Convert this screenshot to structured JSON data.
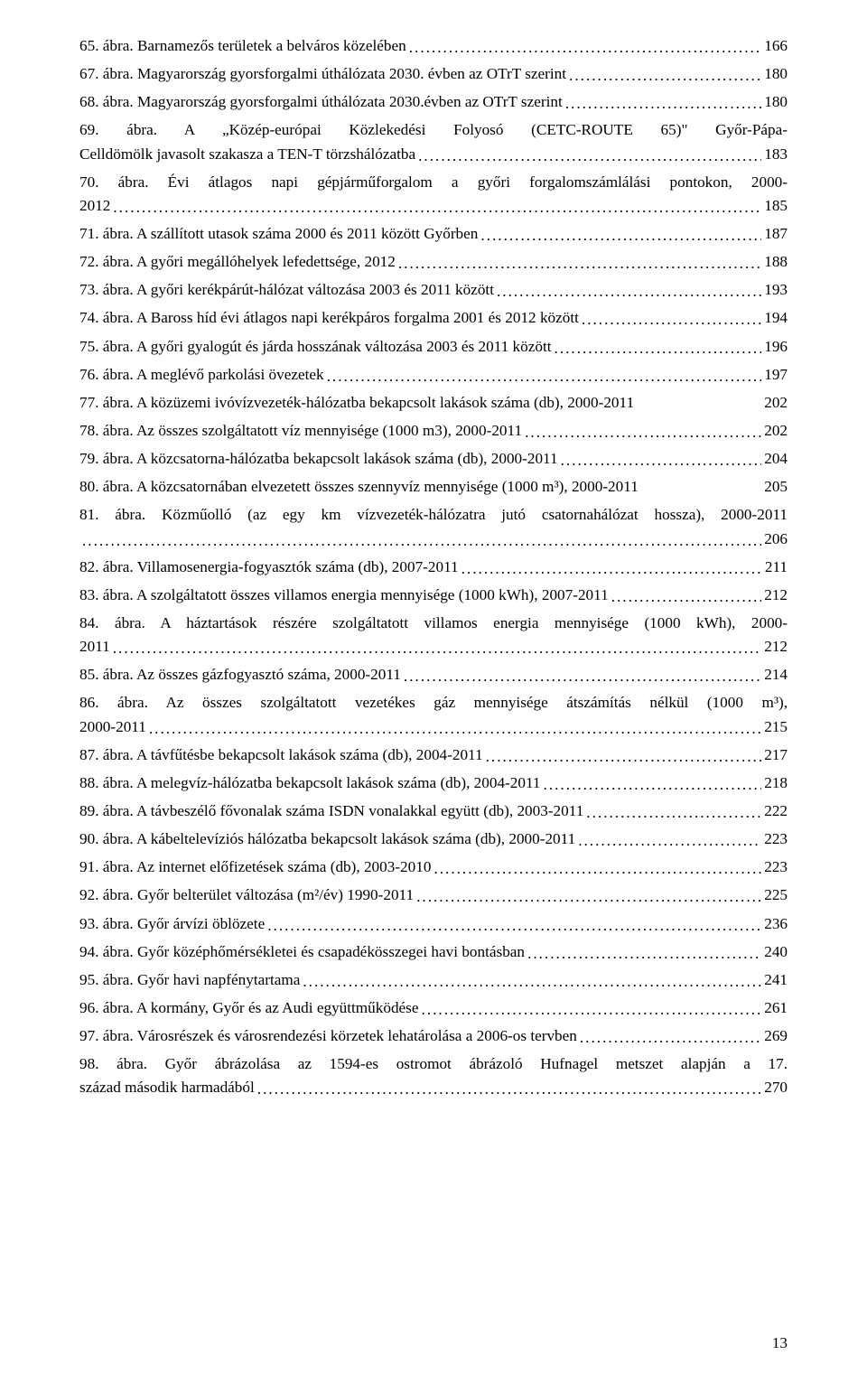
{
  "page_number": "13",
  "entries": [
    {
      "label": "65. ábra. Barnamezős területek a belváros közelében",
      "page": "166",
      "wrap": false
    },
    {
      "label": "67. ábra. Magyarország gyorsforgalmi úthálózata 2030. évben az OTrT szerint",
      "page": "180",
      "wrap": false
    },
    {
      "label": "68. ábra. Magyarország gyorsforgalmi úthálózata 2030.évben az OTrT szerint",
      "page": "180",
      "wrap": false
    },
    {
      "label_line1": "69. ábra. A „Közép-európai Közlekedési Folyosó (CETC-ROUTE 65)\" Győr-Pápa-",
      "label_line2": "Celldömölk javasolt szakasza a TEN-T törzshálózatba",
      "page": "183",
      "wrap": true
    },
    {
      "label_line1": "70. ábra. Évi átlagos napi gépjárműforgalom a győri forgalomszámlálási pontokon, 2000-",
      "label_line2": "2012",
      "page": "185",
      "wrap": true
    },
    {
      "label": "71. ábra. A szállított utasok száma 2000 és 2011 között Győrben",
      "page": "187",
      "wrap": false
    },
    {
      "label": "72. ábra. A győri megállóhelyek lefedettsége, 2012",
      "page": "188",
      "wrap": false
    },
    {
      "label": "73. ábra. A győri kerékpárút-hálózat változása 2003 és 2011 között",
      "page": "193",
      "wrap": false
    },
    {
      "label": "74. ábra. A Baross híd évi átlagos napi kerékpáros forgalma 2001 és 2012 között",
      "page": "194",
      "wrap": false
    },
    {
      "label": "75. ábra. A győri gyalogút és járda hosszának változása 2003 és 2011 között",
      "page": "196",
      "wrap": false
    },
    {
      "label": "76. ábra. A meglévő parkolási övezetek",
      "page": "197",
      "wrap": false
    },
    {
      "label": "77. ábra. A közüzemi ivóvízvezeték-hálózatba bekapcsolt lakások száma (db), 2000-2011",
      "page": "202",
      "wrap": false,
      "nodots": true
    },
    {
      "label": "78. ábra. Az összes szolgáltatott víz mennyisége (1000 m3), 2000-2011",
      "page": "202",
      "wrap": false
    },
    {
      "label": "79. ábra. A közcsatorna-hálózatba bekapcsolt lakások száma (db), 2000-2011",
      "page": "204",
      "wrap": false
    },
    {
      "label": "80. ábra. A közcsatornában elvezetett összes szennyvíz mennyisége (1000 m³), 2000-2011",
      "page": "205",
      "wrap": false,
      "nodots": true
    },
    {
      "label_line1": "81. ábra. Közműolló (az egy km vízvezeték-hálózatra jutó csatornahálózat hossza), 2000-2011",
      "label_line2": "",
      "page": "206",
      "wrap": true,
      "dots_only_line2": true
    },
    {
      "label": "82. ábra. Villamosenergia-fogyasztók száma (db), 2007-2011",
      "page": "211",
      "wrap": false
    },
    {
      "label": "83. ábra. A szolgáltatott összes villamos energia mennyisége (1000 kWh), 2007-2011",
      "page": "212",
      "wrap": false
    },
    {
      "label_line1": "84. ábra. A háztartások részére szolgáltatott villamos energia mennyisége (1000 kWh), 2000-",
      "label_line2": "2011",
      "page": "212",
      "wrap": true
    },
    {
      "label": "85. ábra. Az összes gázfogyasztó száma, 2000-2011",
      "page": "214",
      "wrap": false
    },
    {
      "label_line1": "86. ábra. Az összes szolgáltatott vezetékes gáz mennyisége átszámítás nélkül (1000 m³),",
      "label_line2": "2000-2011",
      "page": "215",
      "wrap": true
    },
    {
      "label": "87. ábra. A távfűtésbe bekapcsolt lakások száma (db), 2004-2011",
      "page": "217",
      "wrap": false
    },
    {
      "label": "88. ábra. A melegvíz-hálózatba bekapcsolt lakások száma (db), 2004-2011",
      "page": "218",
      "wrap": false
    },
    {
      "label": "89. ábra. A távbeszélő fővonalak száma ISDN vonalakkal együtt (db), 2003-2011",
      "page": "222",
      "wrap": false
    },
    {
      "label": "90. ábra. A kábeltelevíziós hálózatba bekapcsolt lakások száma (db), 2000-2011",
      "page": "223",
      "wrap": false
    },
    {
      "label": "91. ábra. Az internet előfizetések száma (db), 2003-2010",
      "page": "223",
      "wrap": false
    },
    {
      "label": "92. ábra. Győr belterület változása (m²/év) 1990-2011",
      "page": "225",
      "wrap": false
    },
    {
      "label": "93. ábra. Győr árvízi öblözete",
      "page": "236",
      "wrap": false
    },
    {
      "label": "94. ábra. Győr középhőmérsékletei és csapadékösszegei havi bontásban",
      "page": "240",
      "wrap": false
    },
    {
      "label": "95. ábra. Győr havi napfénytartama",
      "page": "241",
      "wrap": false
    },
    {
      "label": "96. ábra. A kormány, Győr és az Audi együttműködése",
      "page": "261",
      "wrap": false
    },
    {
      "label": "97. ábra. Városrészek és városrendezési körzetek lehatárolása a 2006-os tervben",
      "page": "269",
      "wrap": false
    },
    {
      "label_line1": "98. ábra. Győr ábrázolása az 1594-es ostromot ábrázoló Hufnagel metszet alapján a 17.",
      "label_line2": "század második harmadából",
      "page": "270",
      "wrap": true
    }
  ]
}
